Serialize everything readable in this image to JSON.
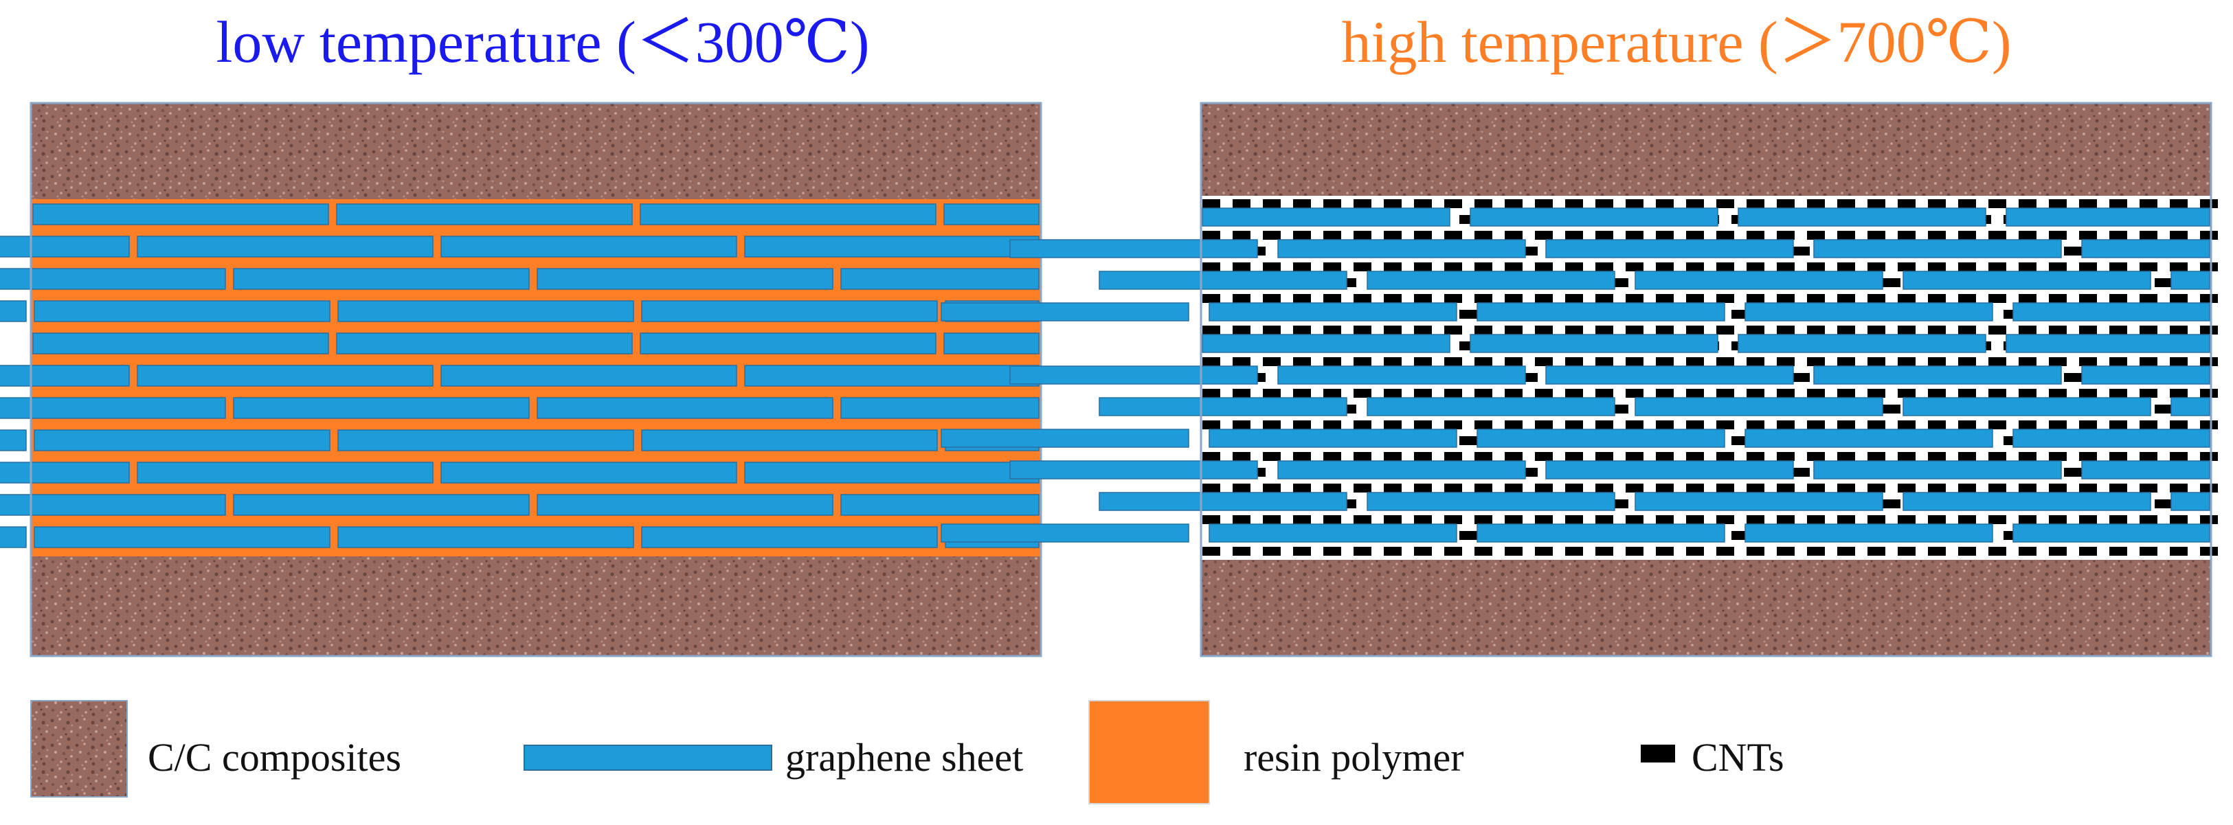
{
  "panels": [
    {
      "id": "low",
      "title": "low temperature (＜300℃)",
      "title_color": "#1a1aee",
      "matrix": "resin polymer",
      "matrix_color": "#ff7f27",
      "has_cnts": false
    },
    {
      "id": "high",
      "title": "high temperature (＞700℃)",
      "title_color": "#ff7f27",
      "matrix": "CNTs",
      "matrix_color": "#ffffff",
      "has_cnts": true
    }
  ],
  "legend": {
    "cc": "C/C composites",
    "graphene": "graphene sheet",
    "resin": "resin polymer",
    "cnts": "CNTs"
  },
  "colors": {
    "cc_base": "#97695f",
    "cc_speckle_dark": "#6b4540",
    "cc_speckle_light": "#c7a39a",
    "graphene": "#1e9bd9",
    "graphene_edge": "#2a6fa3",
    "resin": "#ff7f27",
    "cnt": "#000000",
    "frame": "#8aa7c8"
  }
}
